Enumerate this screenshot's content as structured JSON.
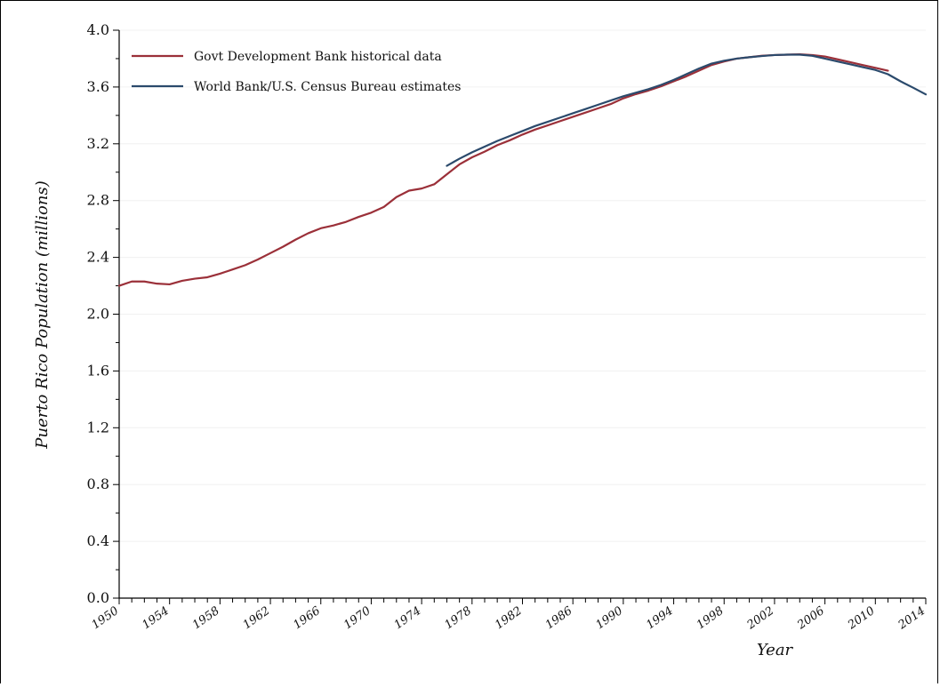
{
  "chart_data": {
    "type": "line",
    "xlabel": "Year",
    "ylabel": "Puerto Rico Population (millions)",
    "xlim": [
      1950,
      2014
    ],
    "ylim": [
      0.0,
      4.0
    ],
    "yticks": [
      "0.0",
      "0.4",
      "0.8",
      "1.2",
      "1.6",
      "2.0",
      "2.4",
      "2.8",
      "3.2",
      "3.6",
      "4.0"
    ],
    "xticks": [
      "1950",
      "1954",
      "1958",
      "1962",
      "1966",
      "1970",
      "1974",
      "1978",
      "1982",
      "1986",
      "1990",
      "1994",
      "1998",
      "2002",
      "2006",
      "2010",
      "2014"
    ],
    "legend_position": "top-left",
    "grid": true,
    "series": [
      {
        "name": "Govt Development Bank historical data",
        "color": "#9b3039",
        "x": [
          1950,
          1951,
          1952,
          1953,
          1954,
          1955,
          1956,
          1957,
          1958,
          1959,
          1960,
          1961,
          1962,
          1963,
          1964,
          1965,
          1966,
          1967,
          1968,
          1969,
          1970,
          1971,
          1972,
          1973,
          1974,
          1975,
          1976,
          1977,
          1978,
          1979,
          1980,
          1981,
          1982,
          1983,
          1984,
          1985,
          1986,
          1987,
          1988,
          1989,
          1990,
          1991,
          1992,
          1993,
          1994,
          1995,
          1996,
          1997,
          1998,
          1999,
          2000,
          2001,
          2002,
          2003,
          2004,
          2005,
          2006,
          2007,
          2008,
          2009,
          2010,
          2011
        ],
        "y": [
          2.2,
          2.23,
          2.23,
          2.215,
          2.21,
          2.235,
          2.25,
          2.26,
          2.285,
          2.315,
          2.345,
          2.385,
          2.43,
          2.475,
          2.525,
          2.57,
          2.605,
          2.625,
          2.65,
          2.685,
          2.715,
          2.755,
          2.825,
          2.87,
          2.885,
          2.915,
          2.985,
          3.055,
          3.105,
          3.145,
          3.19,
          3.225,
          3.265,
          3.3,
          3.33,
          3.36,
          3.39,
          3.42,
          3.45,
          3.48,
          3.52,
          3.55,
          3.575,
          3.605,
          3.64,
          3.675,
          3.715,
          3.755,
          3.78,
          3.8,
          3.81,
          3.82,
          3.825,
          3.828,
          3.83,
          3.825,
          3.815,
          3.795,
          3.775,
          3.755,
          3.735,
          3.715
        ]
      },
      {
        "name": "World Bank/U.S. Census Bureau estimates",
        "color": "#2b4a6c",
        "x": [
          1976,
          1977,
          1978,
          1979,
          1980,
          1981,
          1982,
          1983,
          1984,
          1985,
          1986,
          1987,
          1988,
          1989,
          1990,
          1991,
          1992,
          1993,
          1994,
          1995,
          1996,
          1997,
          1998,
          1999,
          2000,
          2001,
          2002,
          2003,
          2004,
          2005,
          2006,
          2007,
          2008,
          2009,
          2010,
          2011,
          2012,
          2013,
          2014
        ],
        "y": [
          3.045,
          3.095,
          3.14,
          3.18,
          3.22,
          3.255,
          3.29,
          3.325,
          3.355,
          3.385,
          3.415,
          3.445,
          3.475,
          3.505,
          3.535,
          3.56,
          3.585,
          3.615,
          3.65,
          3.69,
          3.73,
          3.765,
          3.785,
          3.8,
          3.81,
          3.818,
          3.825,
          3.828,
          3.828,
          3.82,
          3.8,
          3.78,
          3.76,
          3.74,
          3.72,
          3.69,
          3.64,
          3.595,
          3.548
        ]
      }
    ]
  }
}
